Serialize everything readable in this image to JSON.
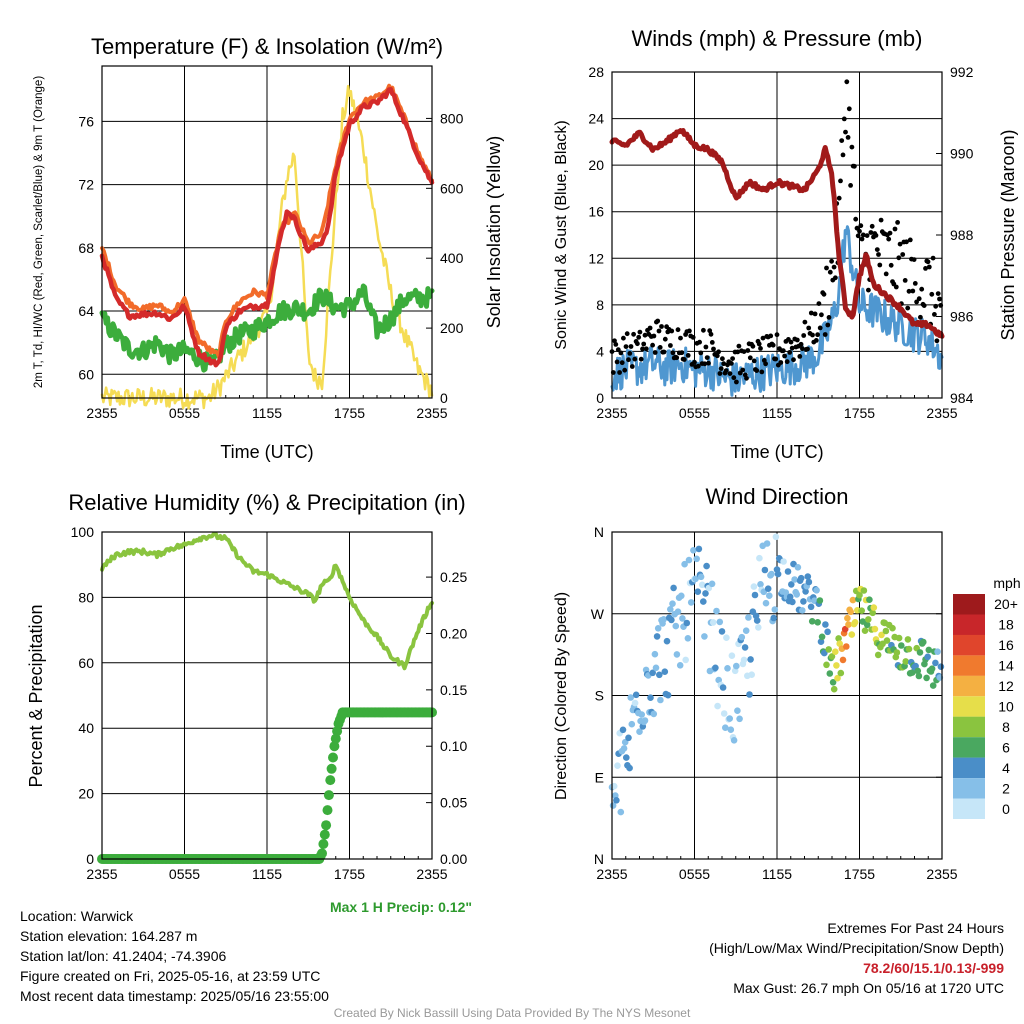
{
  "panels": {
    "temp": {
      "title": "Temperature (F) & Insolation (W/m²)",
      "ylabel_left": "2m T, Td, HI/WC (Red, Green, Scarlet/Blue) & 9m T (Orange)",
      "ylabel_right": "Solar Insolation (Yellow)",
      "xlabel": "Time (UTC)",
      "xticks": [
        "2355",
        "0555",
        "1155",
        "1755",
        "2355"
      ],
      "yticks_left": [
        "60",
        "64",
        "68",
        "72",
        "76"
      ],
      "yticks_right": [
        "0",
        "200",
        "400",
        "600",
        "800"
      ]
    },
    "wind": {
      "title": "Winds (mph) & Pressure (mb)",
      "ylabel_left": "Sonic Wind & Gust (Blue, Black)",
      "ylabel_right": "Station Pressure (Maroon)",
      "xlabel": "Time (UTC)",
      "xticks": [
        "2355",
        "0555",
        "1155",
        "1755",
        "2355"
      ],
      "yticks_left": [
        "0",
        "4",
        "8",
        "12",
        "16",
        "20",
        "24",
        "28"
      ],
      "yticks_right": [
        "984",
        "986",
        "988",
        "990",
        "992"
      ]
    },
    "rh": {
      "title": "Relative Humidity (%) & Precipitation (in)",
      "ylabel_left": "Percent & Precipitation",
      "xticks": [
        "2355",
        "0555",
        "1155",
        "1755",
        "2355"
      ],
      "yticks_left": [
        "0",
        "20",
        "40",
        "60",
        "80",
        "100"
      ],
      "yticks_right": [
        "0.00",
        "0.05",
        "0.10",
        "0.15",
        "0.20",
        "0.25"
      ],
      "note": "Max 1 H Precip: 0.12\""
    },
    "dir": {
      "title": "Wind Direction",
      "ylabel_left": "Direction (Colored By Speed)",
      "xticks": [
        "2355",
        "0555",
        "1155",
        "1755",
        "2355"
      ],
      "yticks_left": [
        "N",
        "E",
        "S",
        "W",
        "N"
      ],
      "legend_title": "mph",
      "legend_labels": [
        "20+",
        "18",
        "16",
        "14",
        "12",
        "10",
        "8",
        "6",
        "4",
        "2",
        "0"
      ]
    }
  },
  "info": {
    "location": "Location: Warwick",
    "elevation": "Station elevation: 164.287 m",
    "latlon": "Station lat/lon: 41.2404; -74.3906",
    "created": "Figure created on Fri, 2025-05-16, at 23:59 UTC",
    "recent": "Most recent data timestamp: 2025/05/16 23:55:00",
    "extremes_title": "Extremes For Past 24 Hours",
    "extremes_sub": "(High/Low/Max Wind/Precipitation/Snow Depth)",
    "extremes_values": "78.2/60/15.1/0.13/-999",
    "max_gust": "Max Gust: 26.7 mph On 05/16 at 1720 UTC",
    "footer": "Created By Nick Bassill Using Data Provided By The NYS Mesonet"
  },
  "colors": {
    "temp": "#d42a2a",
    "nine_m": "#f26b2a",
    "dew": "#3cad3c",
    "solar": "#f5dc55",
    "wind": "#4f97d0",
    "gust": "#000000",
    "pressure": "#a11a1a",
    "rh": "#8ac43f",
    "precip": "#3cad3c",
    "precip_note": "#2e9a2e",
    "extremes": "#c8202a",
    "speed_scale": [
      "#c6e6f8",
      "#86bfe8",
      "#4a8ec8",
      "#4aa860",
      "#8ac43f",
      "#e6de4a",
      "#f4b042",
      "#f07a2e",
      "#e0452c",
      "#c8262a",
      "#9e1a1c"
    ]
  },
  "chart_data": [
    {
      "type": "line",
      "title": "Temperature (F) & Insolation (W/m²)",
      "xlabel": "Time (UTC)",
      "ylabel": "2m T, Td, HI/WC (Red, Green, Scarlet/Blue) & 9m T (Orange)",
      "ylabel_right": "Solar Insolation (Yellow)",
      "x_unit": "hours since 2355 UTC",
      "xlim": [
        0,
        24
      ],
      "ylim": [
        58.5,
        79.5
      ],
      "ylim_right": [
        0,
        950
      ],
      "series": [
        {
          "name": "2m T",
          "x": [
            0,
            1,
            2,
            3,
            4,
            5,
            6,
            7,
            8,
            8.5,
            9,
            10,
            11,
            12,
            13,
            13.5,
            14,
            15,
            16,
            16.5,
            17,
            18,
            19,
            20,
            21,
            22,
            23,
            24
          ],
          "values": [
            67.5,
            64.8,
            63.7,
            63.8,
            63.9,
            63.5,
            64.3,
            61.4,
            60.8,
            60.6,
            63,
            64,
            64.3,
            64.4,
            68.8,
            70.4,
            69.8,
            67.8,
            68.4,
            69.5,
            72.8,
            75.8,
            76.9,
            77.2,
            78,
            76,
            73.8,
            72.1
          ]
        },
        {
          "name": "9m T",
          "x": [
            0,
            1,
            2,
            3,
            4,
            5,
            6,
            7,
            8,
            8.5,
            9,
            10,
            11,
            12,
            13,
            14,
            15,
            16,
            17,
            18,
            19,
            20,
            21,
            22,
            23,
            24
          ],
          "values": [
            68,
            65.6,
            64.5,
            64.1,
            64.4,
            63.9,
            64.7,
            62.2,
            61.4,
            61.2,
            63.4,
            64.6,
            65.2,
            65,
            69.2,
            70.2,
            68.3,
            68.9,
            73.2,
            76.2,
            77.2,
            77.5,
            78.2,
            76.2,
            74,
            72.2
          ]
        },
        {
          "name": "Td",
          "x": [
            0,
            1,
            2,
            3,
            4,
            5,
            6,
            7,
            8,
            9,
            10,
            11,
            12,
            13,
            14,
            15,
            16,
            17,
            18,
            19,
            20,
            21,
            22,
            23,
            24
          ],
          "values": [
            63.5,
            62.5,
            61.6,
            61.5,
            62,
            61.2,
            61.5,
            61.1,
            60.5,
            61.8,
            62.5,
            62.8,
            63.4,
            64,
            64.2,
            64,
            65,
            64.2,
            64.3,
            65.2,
            62.8,
            63.5,
            64.8,
            64.8,
            64.9
          ]
        },
        {
          "name": "Solar",
          "x": [
            0,
            7.8,
            8.5,
            9,
            10,
            11,
            12,
            12.5,
            13,
            13.5,
            14,
            14.5,
            15,
            15.5,
            16,
            16.5,
            17,
            17.5,
            18,
            19,
            20,
            21,
            22,
            23,
            24
          ],
          "values": [
            0,
            0,
            30,
            60,
            120,
            180,
            240,
            350,
            520,
            640,
            700,
            420,
            120,
            60,
            50,
            300,
            560,
            800,
            880,
            720,
            480,
            300,
            180,
            80,
            20
          ]
        }
      ]
    },
    {
      "type": "line",
      "title": "Winds (mph) & Pressure (mb)",
      "xlabel": "Time (UTC)",
      "ylabel": "Sonic Wind & Gust (Blue, Black)",
      "ylabel_right": "Station Pressure (Maroon)",
      "x_unit": "hours since 2355 UTC",
      "xlim": [
        0,
        24
      ],
      "ylim": [
        0,
        28
      ],
      "ylim_right": [
        984,
        992
      ],
      "series": [
        {
          "name": "Sonic Wind",
          "x": [
            0,
            1,
            2,
            3,
            4,
            5,
            6,
            7,
            8,
            9,
            10,
            11,
            12,
            13,
            14,
            15,
            16,
            16.5,
            17,
            18,
            19,
            20,
            21,
            22,
            23,
            24
          ],
          "values": [
            2,
            2.5,
            2.6,
            3,
            2.5,
            3,
            2.4,
            2.5,
            1.8,
            1.5,
            2,
            2.2,
            2.5,
            2.7,
            3,
            3.8,
            6.5,
            9,
            14.5,
            8,
            7.5,
            6.8,
            6.2,
            5.5,
            5.2,
            3.4
          ]
        },
        {
          "name": "Gust",
          "x": [
            0,
            1,
            2,
            3,
            4,
            5,
            6,
            7,
            8,
            9,
            10,
            11,
            12,
            13,
            14,
            15,
            16,
            16.5,
            17,
            18,
            19,
            20,
            21,
            22,
            23,
            24
          ],
          "values": [
            3.5,
            4,
            4.2,
            5.5,
            4.8,
            5,
            4.2,
            4.5,
            3.5,
            2.8,
            3.3,
            3.6,
            4,
            4.5,
            5,
            6.5,
            10.5,
            14.5,
            26.7,
            12,
            13,
            12,
            11.5,
            10,
            9.5,
            7
          ]
        },
        {
          "name": "Pressure",
          "x": [
            0,
            1,
            2,
            3,
            4,
            5,
            6,
            7,
            8,
            9,
            10,
            11,
            12,
            13,
            14,
            15,
            15.5,
            16,
            16.5,
            17,
            17.5,
            18,
            18.5,
            19,
            20,
            21,
            22,
            23,
            24
          ],
          "values": [
            990.3,
            990.2,
            990.5,
            990.1,
            990.3,
            990.6,
            990.2,
            990.1,
            989.8,
            988.9,
            989.3,
            989.1,
            989.3,
            989.2,
            989.1,
            989.6,
            990.1,
            989.5,
            987.5,
            986.2,
            986,
            987,
            987.5,
            986.8,
            986.5,
            986.2,
            985.8,
            985.8,
            985.5
          ]
        }
      ]
    },
    {
      "type": "line",
      "title": "Relative Humidity (%) & Precipitation (in)",
      "ylabel": "Percent & Precipitation",
      "x_unit": "hours since 2355 UTC",
      "xlim": [
        0,
        24
      ],
      "ylim": [
        0,
        100
      ],
      "ylim_right": [
        0,
        0.29
      ],
      "series": [
        {
          "name": "RH",
          "x": [
            0,
            1,
            2,
            3,
            4,
            5,
            6,
            7,
            8,
            9,
            10,
            11,
            12,
            13,
            14,
            15,
            15.5,
            16,
            16.5,
            17,
            18,
            19,
            20,
            21,
            22,
            23,
            24
          ],
          "values": [
            89,
            93,
            94,
            94,
            93,
            95,
            96,
            98,
            99,
            98,
            92,
            88,
            87,
            85,
            83,
            81,
            79,
            84,
            85,
            90,
            80,
            73,
            68,
            62,
            59,
            70,
            79
          ]
        },
        {
          "name": "Precipitation",
          "x": [
            0,
            15.8,
            16,
            16.3,
            16.6,
            16.9,
            17.2,
            17.5,
            24
          ],
          "values": [
            0,
            0,
            0.005,
            0.03,
            0.07,
            0.1,
            0.12,
            0.13,
            0.13
          ]
        }
      ]
    },
    {
      "type": "scatter",
      "title": "Wind Direction",
      "ylabel": "Direction (Colored By Speed)",
      "x_unit": "hours since 2355 UTC",
      "xlim": [
        0,
        24
      ],
      "ylim": [
        0,
        360
      ],
      "legend_title": "mph",
      "legend_labels": [
        "20+",
        "18",
        "16",
        "14",
        "12",
        "10",
        "8",
        "6",
        "4",
        "2",
        "0"
      ],
      "series": [
        {
          "name": "Direction",
          "x": [
            0,
            1,
            2,
            3,
            4,
            5,
            6,
            7,
            8,
            9,
            10,
            11,
            12,
            13,
            14,
            15,
            16,
            17,
            18,
            19,
            20,
            21,
            22,
            23,
            24
          ],
          "values": [
            60,
            110,
            185,
            210,
            230,
            260,
            295,
            270,
            200,
            170,
            230,
            300,
            320,
            305,
            290,
            280,
            200,
            240,
            280,
            255,
            240,
            230,
            225,
            215,
            205
          ]
        }
      ]
    }
  ]
}
